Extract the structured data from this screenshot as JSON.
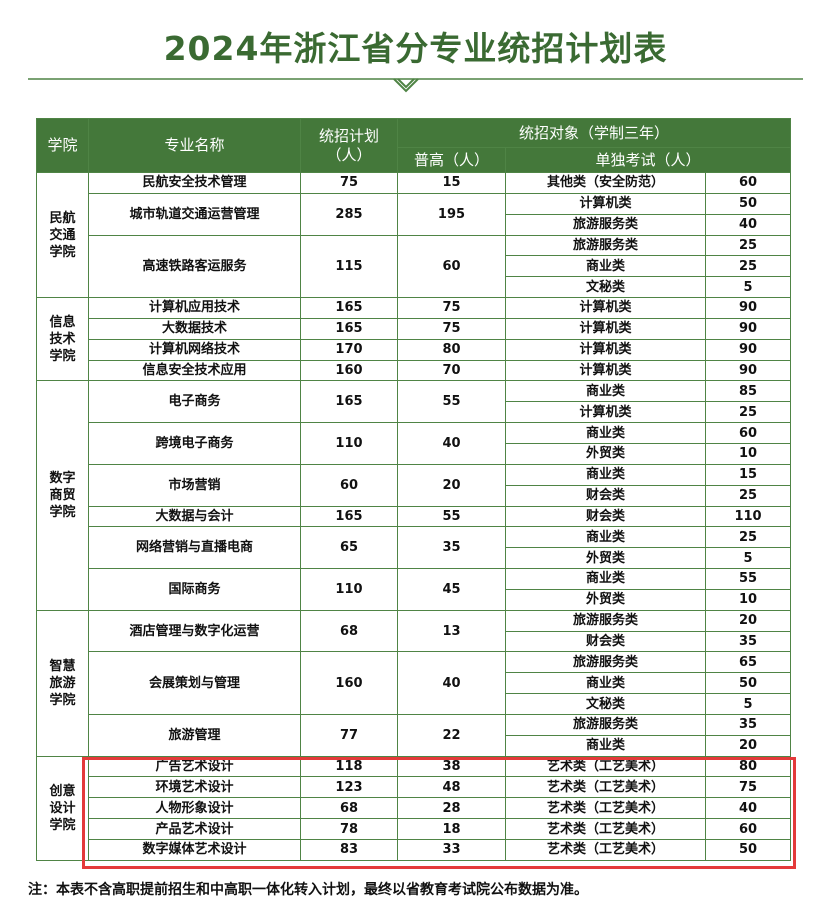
{
  "header": {
    "title": "2024年浙江省分专业统招计划表"
  },
  "table": {
    "columns": {
      "college": "学院",
      "major": "专业名称",
      "plan": "统招计划（人）",
      "target": "统招对象（学制三年）",
      "general": "普高（人）",
      "exam": "单独考试（人）"
    },
    "colleges": [
      {
        "name": "民航交通学院",
        "majors": [
          {
            "name": "民航安全技术管理",
            "plan": 75,
            "general": 15,
            "exams": [
              {
                "category": "其他类（安全防范）",
                "count": 60
              }
            ]
          },
          {
            "name": "城市轨道交通运营管理",
            "plan": 285,
            "general": 195,
            "exams": [
              {
                "category": "计算机类",
                "count": 50
              },
              {
                "category": "旅游服务类",
                "count": 40
              }
            ]
          },
          {
            "name": "高速铁路客运服务",
            "plan": 115,
            "general": 60,
            "exams": [
              {
                "category": "旅游服务类",
                "count": 25
              },
              {
                "category": "商业类",
                "count": 25
              },
              {
                "category": "文秘类",
                "count": 5
              }
            ]
          }
        ]
      },
      {
        "name": "信息技术学院",
        "majors": [
          {
            "name": "计算机应用技术",
            "plan": 165,
            "general": 75,
            "exams": [
              {
                "category": "计算机类",
                "count": 90
              }
            ]
          },
          {
            "name": "大数据技术",
            "plan": 165,
            "general": 75,
            "exams": [
              {
                "category": "计算机类",
                "count": 90
              }
            ]
          },
          {
            "name": "计算机网络技术",
            "plan": 170,
            "general": 80,
            "exams": [
              {
                "category": "计算机类",
                "count": 90
              }
            ]
          },
          {
            "name": "信息安全技术应用",
            "plan": 160,
            "general": 70,
            "exams": [
              {
                "category": "计算机类",
                "count": 90
              }
            ]
          }
        ]
      },
      {
        "name": "数字商贸学院",
        "majors": [
          {
            "name": "电子商务",
            "plan": 165,
            "general": 55,
            "exams": [
              {
                "category": "商业类",
                "count": 85
              },
              {
                "category": "计算机类",
                "count": 25
              }
            ]
          },
          {
            "name": "跨境电子商务",
            "plan": 110,
            "general": 40,
            "exams": [
              {
                "category": "商业类",
                "count": 60
              },
              {
                "category": "外贸类",
                "count": 10
              }
            ]
          },
          {
            "name": "市场营销",
            "plan": 60,
            "general": 20,
            "exams": [
              {
                "category": "商业类",
                "count": 15
              },
              {
                "category": "财会类",
                "count": 25
              }
            ]
          },
          {
            "name": "大数据与会计",
            "plan": 165,
            "general": 55,
            "exams": [
              {
                "category": "财会类",
                "count": 110
              }
            ]
          },
          {
            "name": "网络营销与直播电商",
            "plan": 65,
            "general": 35,
            "exams": [
              {
                "category": "商业类",
                "count": 25
              },
              {
                "category": "外贸类",
                "count": 5
              }
            ]
          },
          {
            "name": "国际商务",
            "plan": 110,
            "general": 45,
            "exams": [
              {
                "category": "商业类",
                "count": 55
              },
              {
                "category": "外贸类",
                "count": 10
              }
            ]
          }
        ]
      },
      {
        "name": "智慧旅游学院",
        "majors": [
          {
            "name": "酒店管理与数字化运营",
            "plan": 68,
            "general": 13,
            "exams": [
              {
                "category": "旅游服务类",
                "count": 20
              },
              {
                "category": "财会类",
                "count": 35
              }
            ]
          },
          {
            "name": "会展策划与管理",
            "plan": 160,
            "general": 40,
            "exams": [
              {
                "category": "旅游服务类",
                "count": 65
              },
              {
                "category": "商业类",
                "count": 50
              },
              {
                "category": "文秘类",
                "count": 5
              }
            ]
          },
          {
            "name": "旅游管理",
            "plan": 77,
            "general": 22,
            "exams": [
              {
                "category": "旅游服务类",
                "count": 35
              },
              {
                "category": "商业类",
                "count": 20
              }
            ]
          }
        ]
      },
      {
        "name": "创意设计学院",
        "majors": [
          {
            "name": "广告艺术设计",
            "plan": 118,
            "general": 38,
            "exams": [
              {
                "category": "艺术类（工艺美术）",
                "count": 80
              }
            ]
          },
          {
            "name": "环境艺术设计",
            "plan": 123,
            "general": 48,
            "exams": [
              {
                "category": "艺术类（工艺美术）",
                "count": 75
              }
            ]
          },
          {
            "name": "人物形象设计",
            "plan": 68,
            "general": 28,
            "exams": [
              {
                "category": "艺术类（工艺美术）",
                "count": 40
              }
            ]
          },
          {
            "name": "产品艺术设计",
            "plan": 78,
            "general": 18,
            "exams": [
              {
                "category": "艺术类（工艺美术）",
                "count": 60
              }
            ]
          },
          {
            "name": "数字媒体艺术设计",
            "plan": 83,
            "general": 33,
            "exams": [
              {
                "category": "艺术类（工艺美术）",
                "count": 50
              }
            ]
          }
        ]
      }
    ]
  },
  "footer": {
    "note": "注：本表不含高职提前招生和中高职一体化转入计划，最终以省教育考试院公布数据为准。"
  }
}
